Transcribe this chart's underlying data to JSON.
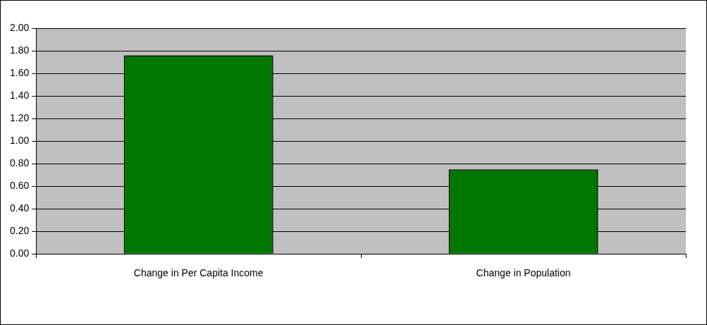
{
  "chart_data": {
    "type": "bar",
    "categories": [
      "Change in Per Capita Income",
      "Change in Population"
    ],
    "values": [
      1.76,
      0.75
    ],
    "color": "#007700",
    "ylim": [
      0,
      2
    ],
    "yticks": [
      {
        "value": 0,
        "label": "0.00"
      },
      {
        "value": 0.2,
        "label": "0.20"
      },
      {
        "value": 0.4,
        "label": "0.40"
      },
      {
        "value": 0.6,
        "label": "0.60"
      },
      {
        "value": 0.8,
        "label": "0.80"
      },
      {
        "value": 1,
        "label": "1.00"
      },
      {
        "value": 1.2,
        "label": "1.20"
      },
      {
        "value": 1.4,
        "label": "1.40"
      },
      {
        "value": 1.6,
        "label": "1.60"
      },
      {
        "value": 1.8,
        "label": "1.80"
      },
      {
        "value": 2,
        "label": "2.00"
      }
    ],
    "grid": "y",
    "legend": false
  }
}
